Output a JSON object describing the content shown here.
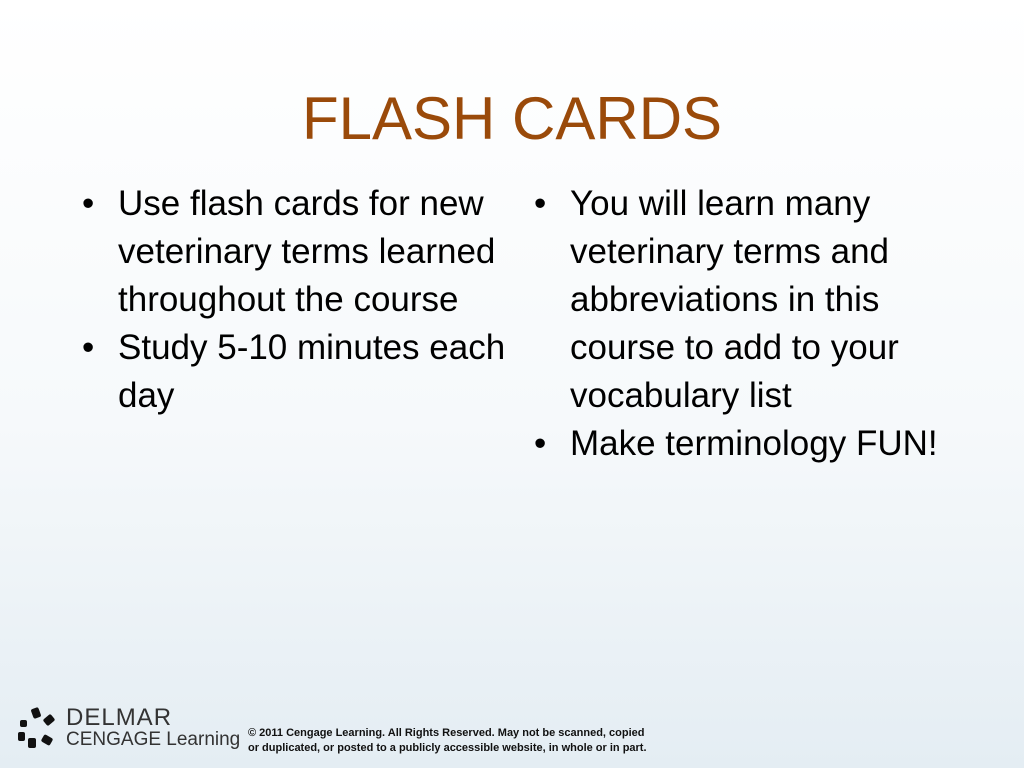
{
  "title": "FLASH CARDS",
  "left_bullets": [
    "Use flash cards for new veterinary terms learned throughout the course",
    "Study 5-10 minutes each day"
  ],
  "right_bullets": [
    "You will learn many veterinary terms and abbreviations in this course to add to your vocabulary list",
    "Make terminology FUN!"
  ],
  "footer": {
    "logo_line1": "DELMAR",
    "logo_line2": "CENGAGE Learning",
    "copyright_line1": "© 2011 Cengage Learning. All Rights Reserved. May not be scanned, copied",
    "copyright_line2": "or duplicated, or posted to a publicly accessible website, in whole or in part."
  },
  "colors": {
    "title": "#9a4a0a"
  }
}
